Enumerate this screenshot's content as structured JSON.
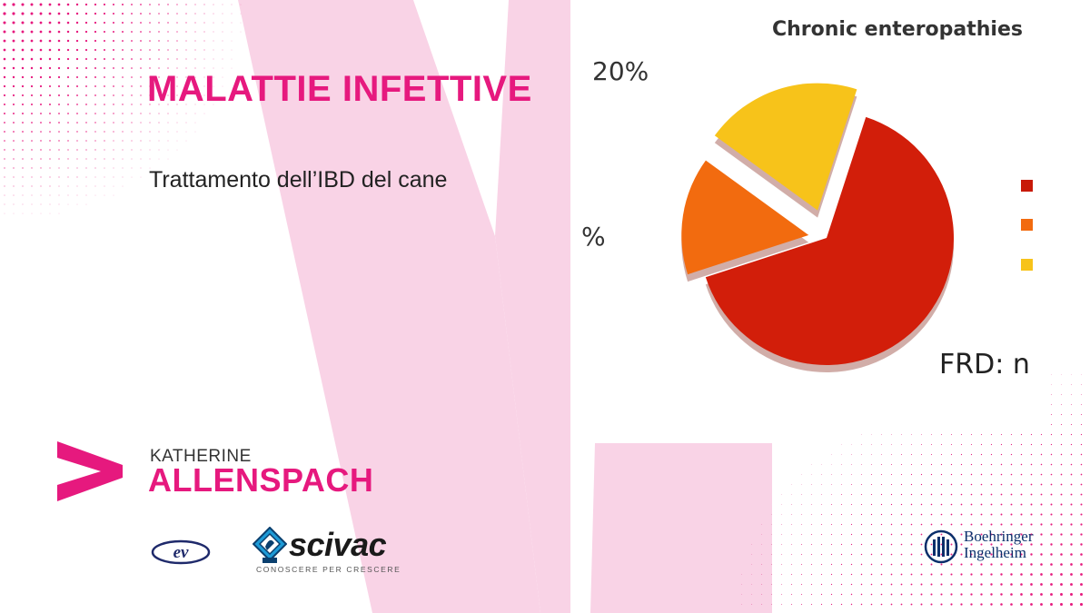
{
  "headline": "MALATTIE INFETTIVE",
  "subtitle": "Trattamento dell’IBD del cane",
  "chart": {
    "title": "Chronic enteropathies",
    "label_top": "20%",
    "label_left": "%",
    "footer": "FRD: n",
    "chart_data": {
      "type": "pie",
      "title": "Chronic enteropathies",
      "values": [
        65,
        15,
        20
      ],
      "colors": [
        "#d21e0a",
        "#f26b0f",
        "#f7c31a"
      ],
      "data_labels": [
        "",
        "%",
        "20%"
      ]
    }
  },
  "speaker": {
    "first_name": "KATHERINE",
    "last_name": "ALLENSPACH"
  },
  "logos": {
    "ev_text": "ev",
    "scivac_name": "scivac",
    "scivac_tagline": "CONOSCERE PER CRESCERE",
    "bi_line1": "Boehringer",
    "bi_line2": "Ingelheim"
  },
  "colors": {
    "brand_pink": "#e6197e",
    "light_pink": "#f9cfe3",
    "bi_blue": "#0b2f6b"
  }
}
